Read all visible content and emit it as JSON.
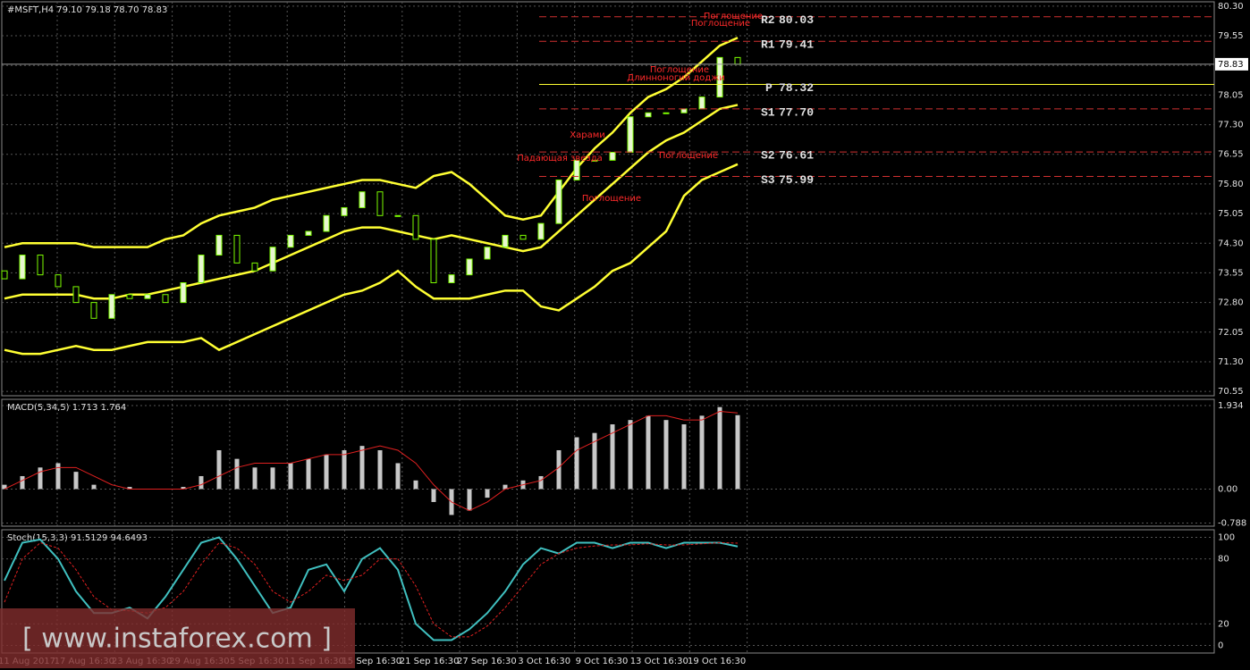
{
  "chart_data": [
    {
      "type": "candlestick",
      "title": "#MSFT,H4  79.10 79.18 78.70 78.83",
      "ylim": [
        70.44,
        80.41
      ],
      "yticks": [
        {
          "value": 80.3,
          "label": "80.30"
        },
        79.55,
        {
          "value": 78.8,
          "label": "78.80"
        },
        78.05,
        {
          "value": 77.3,
          "label": "77.30"
        },
        76.55,
        {
          "value": 75.8,
          "label": "75.80"
        },
        75.05,
        {
          "value": 74.3,
          "label": "74.30"
        },
        73.55,
        {
          "value": 72.8,
          "label": "72.80"
        },
        72.05,
        {
          "value": 71.3,
          "label": "71.30"
        },
        70.55
      ],
      "current_price": 78.83,
      "open": [
        73.6,
        73.4,
        74.0,
        73.5,
        73.2,
        72.8,
        72.4,
        73.0,
        72.9,
        73.0,
        72.8,
        73.3,
        74.0,
        74.5,
        73.8,
        73.6,
        74.2,
        74.5,
        74.6,
        75.0,
        75.2,
        75.6,
        75.0,
        75.0,
        74.4,
        73.3,
        73.5,
        73.9,
        74.2,
        74.5,
        74.4,
        74.8,
        75.9,
        76.4,
        76.4,
        76.6,
        77.5,
        77.6,
        77.6,
        77.7,
        78.0,
        79.0
      ],
      "close": [
        73.4,
        74.0,
        73.5,
        73.2,
        72.8,
        72.4,
        73.0,
        72.9,
        73.0,
        72.8,
        73.3,
        74.0,
        74.5,
        73.8,
        73.6,
        74.2,
        74.5,
        74.6,
        75.0,
        75.2,
        75.6,
        75.0,
        75.0,
        74.4,
        73.3,
        73.5,
        73.9,
        74.2,
        74.5,
        74.4,
        74.8,
        75.9,
        76.4,
        76.4,
        76.6,
        77.5,
        77.6,
        77.6,
        77.7,
        78.0,
        79.0,
        78.83
      ],
      "bb_upper": [
        74.2,
        74.3,
        74.3,
        74.3,
        74.3,
        74.2,
        74.2,
        74.2,
        74.2,
        74.4,
        74.5,
        74.8,
        75.0,
        75.1,
        75.2,
        75.4,
        75.5,
        75.6,
        75.7,
        75.8,
        75.9,
        75.9,
        75.8,
        75.7,
        76.0,
        76.1,
        75.8,
        75.4,
        75.0,
        74.9,
        75.0,
        75.6,
        76.2,
        76.7,
        77.1,
        77.6,
        78.0,
        78.2,
        78.5,
        78.9,
        79.3,
        79.5
      ],
      "bb_middle": [
        72.9,
        73.0,
        73.0,
        73.0,
        73.0,
        72.9,
        72.9,
        73.0,
        73.0,
        73.1,
        73.2,
        73.3,
        73.4,
        73.5,
        73.6,
        73.8,
        74.0,
        74.2,
        74.4,
        74.6,
        74.7,
        74.7,
        74.6,
        74.5,
        74.4,
        74.5,
        74.4,
        74.3,
        74.2,
        74.1,
        74.2,
        74.6,
        75.0,
        75.4,
        75.8,
        76.2,
        76.6,
        76.9,
        77.1,
        77.4,
        77.7,
        77.8
      ],
      "bb_lower": [
        71.6,
        71.5,
        71.5,
        71.6,
        71.7,
        71.6,
        71.6,
        71.7,
        71.8,
        71.8,
        71.8,
        71.9,
        71.6,
        71.8,
        72.0,
        72.2,
        72.4,
        72.6,
        72.8,
        73.0,
        73.1,
        73.3,
        73.6,
        73.2,
        72.9,
        72.9,
        72.9,
        73.0,
        73.1,
        73.1,
        72.7,
        72.6,
        72.9,
        73.2,
        73.6,
        73.8,
        74.2,
        74.6,
        75.5,
        75.9,
        76.1,
        76.3
      ],
      "bb_color": "#ffff33",
      "bull_color": "#e8f7d0",
      "bear_color": "#000000",
      "candle_edge": "#7cfc00",
      "pivots": [
        {
          "name": "R2",
          "value": 80.03,
          "color": "#d03030"
        },
        {
          "name": "R1",
          "value": 79.41,
          "color": "#d03030"
        },
        {
          "name": "P",
          "value": 78.32,
          "color": "#ffff33"
        },
        {
          "name": "S1",
          "value": 77.7,
          "label": "77.70",
          "color": "#d03030"
        },
        {
          "name": "S2",
          "value": 76.61,
          "color": "#d03030"
        },
        {
          "name": "S3",
          "value": 75.99,
          "color": "#d03030"
        }
      ],
      "annotations": [
        "Поглощение",
        "Поглощение",
        "Поглощение",
        "Длинноногий доджи",
        "Харами",
        "Падающая звезда",
        "Поглощение",
        "Поглощение"
      ]
    },
    {
      "type": "bar",
      "title": "MACD(5,34,5) 1.713 1.764",
      "ylim": [
        -0.86,
        2.08
      ],
      "yticks": [
        1.934,
        {
          "value": 0,
          "label": "0.00"
        },
        -0.788
      ],
      "values": [
        0.1,
        0.3,
        0.5,
        0.6,
        0.4,
        0.1,
        0.0,
        0.05,
        0.0,
        0.0,
        0.05,
        0.3,
        0.9,
        0.7,
        0.5,
        0.5,
        0.6,
        0.7,
        0.8,
        0.9,
        1.0,
        0.9,
        0.6,
        0.2,
        -0.3,
        -0.6,
        -0.5,
        -0.2,
        0.1,
        0.2,
        0.3,
        0.9,
        1.2,
        1.3,
        1.5,
        1.6,
        1.7,
        1.6,
        1.5,
        1.7,
        1.9,
        1.713
      ],
      "signal": [
        0.0,
        0.2,
        0.4,
        0.5,
        0.5,
        0.3,
        0.1,
        0.0,
        0.0,
        0.0,
        0.0,
        0.1,
        0.3,
        0.5,
        0.6,
        0.6,
        0.6,
        0.7,
        0.8,
        0.8,
        0.9,
        1.0,
        0.9,
        0.6,
        0.1,
        -0.3,
        -0.5,
        -0.3,
        0.0,
        0.1,
        0.2,
        0.5,
        0.9,
        1.1,
        1.3,
        1.5,
        1.7,
        1.7,
        1.6,
        1.6,
        1.8,
        1.764
      ],
      "color": "#c8c8c8",
      "signal_color": "#e02020"
    },
    {
      "type": "line",
      "title": "Stoch(15,3,3) 91.5129 94.6493",
      "ylim": [
        -7,
        107
      ],
      "yticks": [
        100,
        80,
        20,
        0
      ],
      "values": [
        60,
        95,
        98,
        80,
        50,
        30,
        30,
        35,
        25,
        45,
        70,
        95,
        100,
        80,
        55,
        30,
        35,
        70,
        75,
        50,
        80,
        90,
        70,
        20,
        5,
        5,
        15,
        30,
        50,
        75,
        90,
        85,
        95,
        95,
        90,
        95,
        95,
        90,
        95,
        95,
        95,
        91.5129
      ],
      "signal": [
        40,
        80,
        95,
        90,
        70,
        45,
        33,
        32,
        30,
        35,
        50,
        75,
        95,
        90,
        75,
        50,
        40,
        50,
        65,
        60,
        65,
        80,
        80,
        55,
        20,
        8,
        8,
        18,
        35,
        55,
        75,
        85,
        90,
        92,
        93,
        93,
        94,
        93,
        93,
        94,
        95,
        94.6493
      ],
      "color": "#40c0c0",
      "signal_color": "#e02020",
      "time_labels": [
        "11 Aug 2017",
        "17 Aug 16:30",
        "23 Aug 16:30",
        "29 Aug 16:30",
        "5 Sep 16:30",
        "11 Sep 16:30",
        "15 Sep 16:30",
        "21 Sep 16:30",
        "27 Sep 16:30",
        "3 Oct 16:30",
        "9 Oct 16:30",
        "13 Oct 16:30",
        "19 Oct 16:30"
      ]
    }
  ],
  "watermark": "[ www.instaforex.com ]"
}
